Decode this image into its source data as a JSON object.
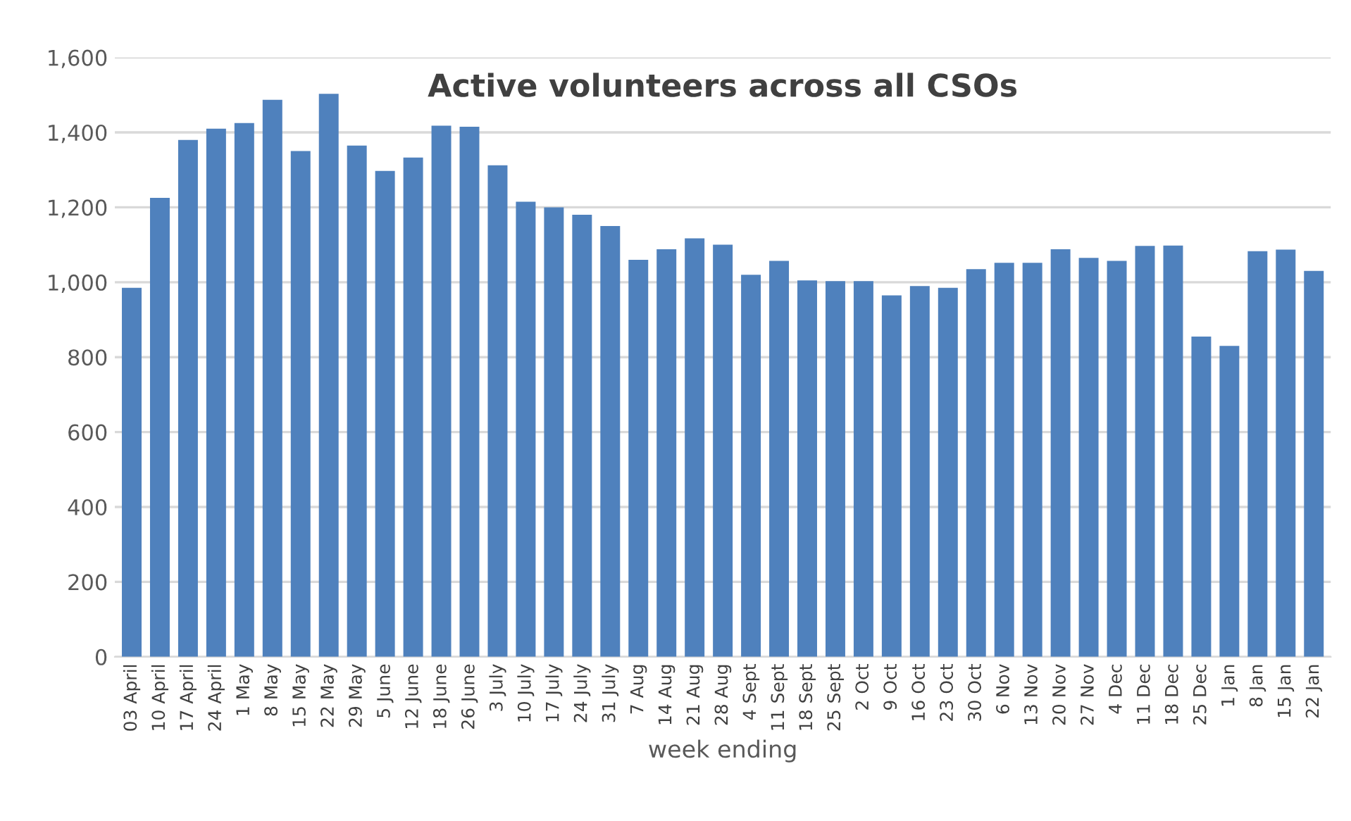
{
  "chart_data": {
    "type": "bar",
    "title": "Active volunteers across all CSOs",
    "xlabel": "week ending",
    "categories": [
      "03 April",
      "10 April",
      "17 April",
      "24 April",
      "1 May",
      "8 May",
      "15 May",
      "22 May",
      "29 May",
      "5 June",
      "12 June",
      "18 June",
      "26 June",
      "3 July",
      "10 July",
      "17 July",
      "24 July",
      "31 July",
      "7 Aug",
      "14 Aug",
      "21 Aug",
      "28 Aug",
      "4 Sept",
      "11 Sept",
      "18 Sept",
      "25 Sept",
      "2 Oct",
      "9 Oct",
      "16 Oct",
      "23 Oct",
      "30 Oct",
      "6 Nov",
      "13 Nov",
      "20 Nov",
      "27 Nov",
      "4 Dec",
      "11 Dec",
      "18 Dec",
      "25 Dec",
      "1 Jan",
      "8 Jan",
      "15 Jan",
      "22 Jan"
    ],
    "values": [
      985,
      1225,
      1380,
      1410,
      1425,
      1487,
      1350,
      1503,
      1365,
      1297,
      1333,
      1418,
      1415,
      1312,
      1215,
      1200,
      1180,
      1150,
      1060,
      1088,
      1117,
      1100,
      1020,
      1057,
      1005,
      1003,
      1003,
      965,
      990,
      985,
      1035,
      1052,
      1052,
      1088,
      1065,
      1057,
      1097,
      1098,
      855,
      830,
      1083,
      1087,
      1030
    ],
    "color": "#4f81bd",
    "ylim": [
      0,
      1600
    ],
    "yticks": [
      0,
      {
        "value": 200,
        "label": "200"
      },
      {
        "value": 400,
        "label": "400"
      },
      {
        "value": 600,
        "label": "600"
      },
      {
        "value": 800,
        "label": "800"
      },
      {
        "value": 1000,
        "label": "1,000"
      },
      {
        "value": 1200,
        "label": "1,200"
      },
      {
        "value": 1400,
        "label": "1,400"
      },
      {
        "value": 1600,
        "label": "1,600"
      }
    ],
    "grid": "y",
    "legend": false
  }
}
